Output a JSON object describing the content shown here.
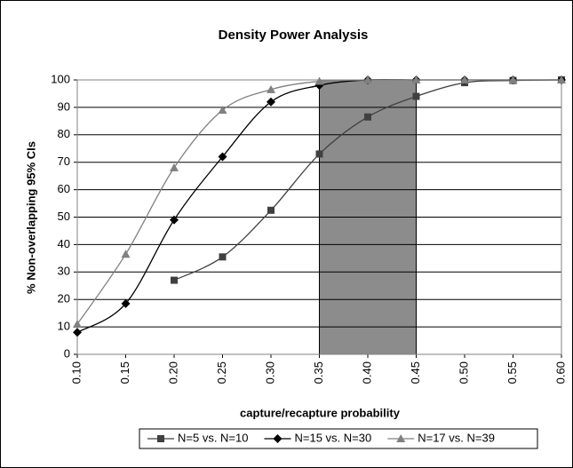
{
  "chart_data": {
    "type": "line",
    "title": "Density Power Analysis",
    "xlabel": "capture/recapture probability",
    "ylabel": "% Non-overlapping 95% CIs",
    "xlim": [
      0.1,
      0.6
    ],
    "xticks": [
      {
        "value": 0.1,
        "label": "0.10"
      },
      {
        "value": 0.15,
        "label": "0.15"
      },
      {
        "value": 0.2,
        "label": "0.20"
      },
      {
        "value": 0.25,
        "label": "0.25"
      },
      {
        "value": 0.3,
        "label": "0.30"
      },
      {
        "value": 0.35,
        "label": "0.35"
      },
      {
        "value": 0.4,
        "label": "0.40"
      },
      {
        "value": 0.45,
        "label": "0.45"
      },
      {
        "value": 0.5,
        "label": "0.50"
      },
      {
        "value": 0.55,
        "label": "0.55"
      },
      {
        "value": 0.6,
        "label": "0.60"
      }
    ],
    "ylim": [
      0,
      100
    ],
    "yticks": [
      0,
      10,
      20,
      30,
      40,
      50,
      60,
      70,
      80,
      90,
      100
    ],
    "grid": true,
    "highlight": {
      "x": [
        0.35,
        0.45
      ],
      "color": "#8c8c8c"
    },
    "legend": "bottom",
    "series": [
      {
        "name": "N=5 vs. N=10",
        "color": "#404040",
        "marker": "square",
        "x": [
          0.2,
          0.25,
          0.3,
          0.35,
          0.4,
          0.45,
          0.5,
          0.55,
          0.6
        ],
        "values": [
          27,
          35.5,
          52.5,
          73,
          86.5,
          94,
          99,
          99.8,
          100
        ]
      },
      {
        "name": "N=15 vs. N=30",
        "color": "#000000",
        "marker": "diamond",
        "x": [
          0.1,
          0.15,
          0.2,
          0.25,
          0.3,
          0.35,
          0.4,
          0.45,
          0.5,
          0.55,
          0.6
        ],
        "values": [
          8,
          18.5,
          49,
          72,
          92,
          98,
          100,
          100,
          100,
          100,
          100
        ]
      },
      {
        "name": "N=17 vs. N=39",
        "color": "#808080",
        "marker": "triangle",
        "x": [
          0.1,
          0.15,
          0.2,
          0.25,
          0.3,
          0.35,
          0.4,
          0.45,
          0.5,
          0.55,
          0.6
        ],
        "values": [
          11,
          36.5,
          68,
          89,
          96.5,
          99.5,
          100,
          100,
          100,
          100,
          100
        ]
      }
    ]
  }
}
